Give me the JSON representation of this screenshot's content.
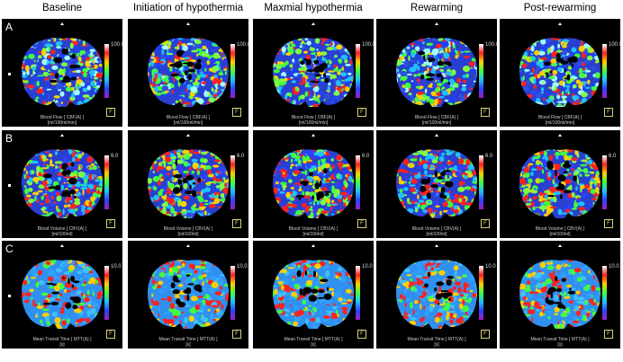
{
  "column_headers": [
    "Baseline",
    "Initiation of hypothermia",
    "Maxmial hypothermia",
    "Rewarming",
    "Post-rewarming"
  ],
  "rows": [
    {
      "letter": "A",
      "max": "100.0",
      "caption1": "Blood Flow [ CBF(A) ]",
      "caption2": "[ml/100ml/min]"
    },
    {
      "letter": "B",
      "max": "6.0",
      "caption1": "Blood Volume [ CBV(A) ]",
      "caption2": "[ml/100ml]"
    },
    {
      "letter": "C",
      "max": "10.0",
      "caption1": "Mean Transit Time [ MTT(A) ]",
      "caption2": "[s]"
    }
  ],
  "f_label": "F",
  "colors": {
    "background": "#000000",
    "colorbar_gradient": [
      "#ffffff",
      "#ff2020",
      "#ffd000",
      "#40ff40",
      "#20c0ff",
      "#3040ff",
      "#a020c0"
    ]
  },
  "icons": [
    "marker-triangle-icon",
    "marker-dot-icon",
    "f-box-icon",
    "colorbar-icon"
  ]
}
